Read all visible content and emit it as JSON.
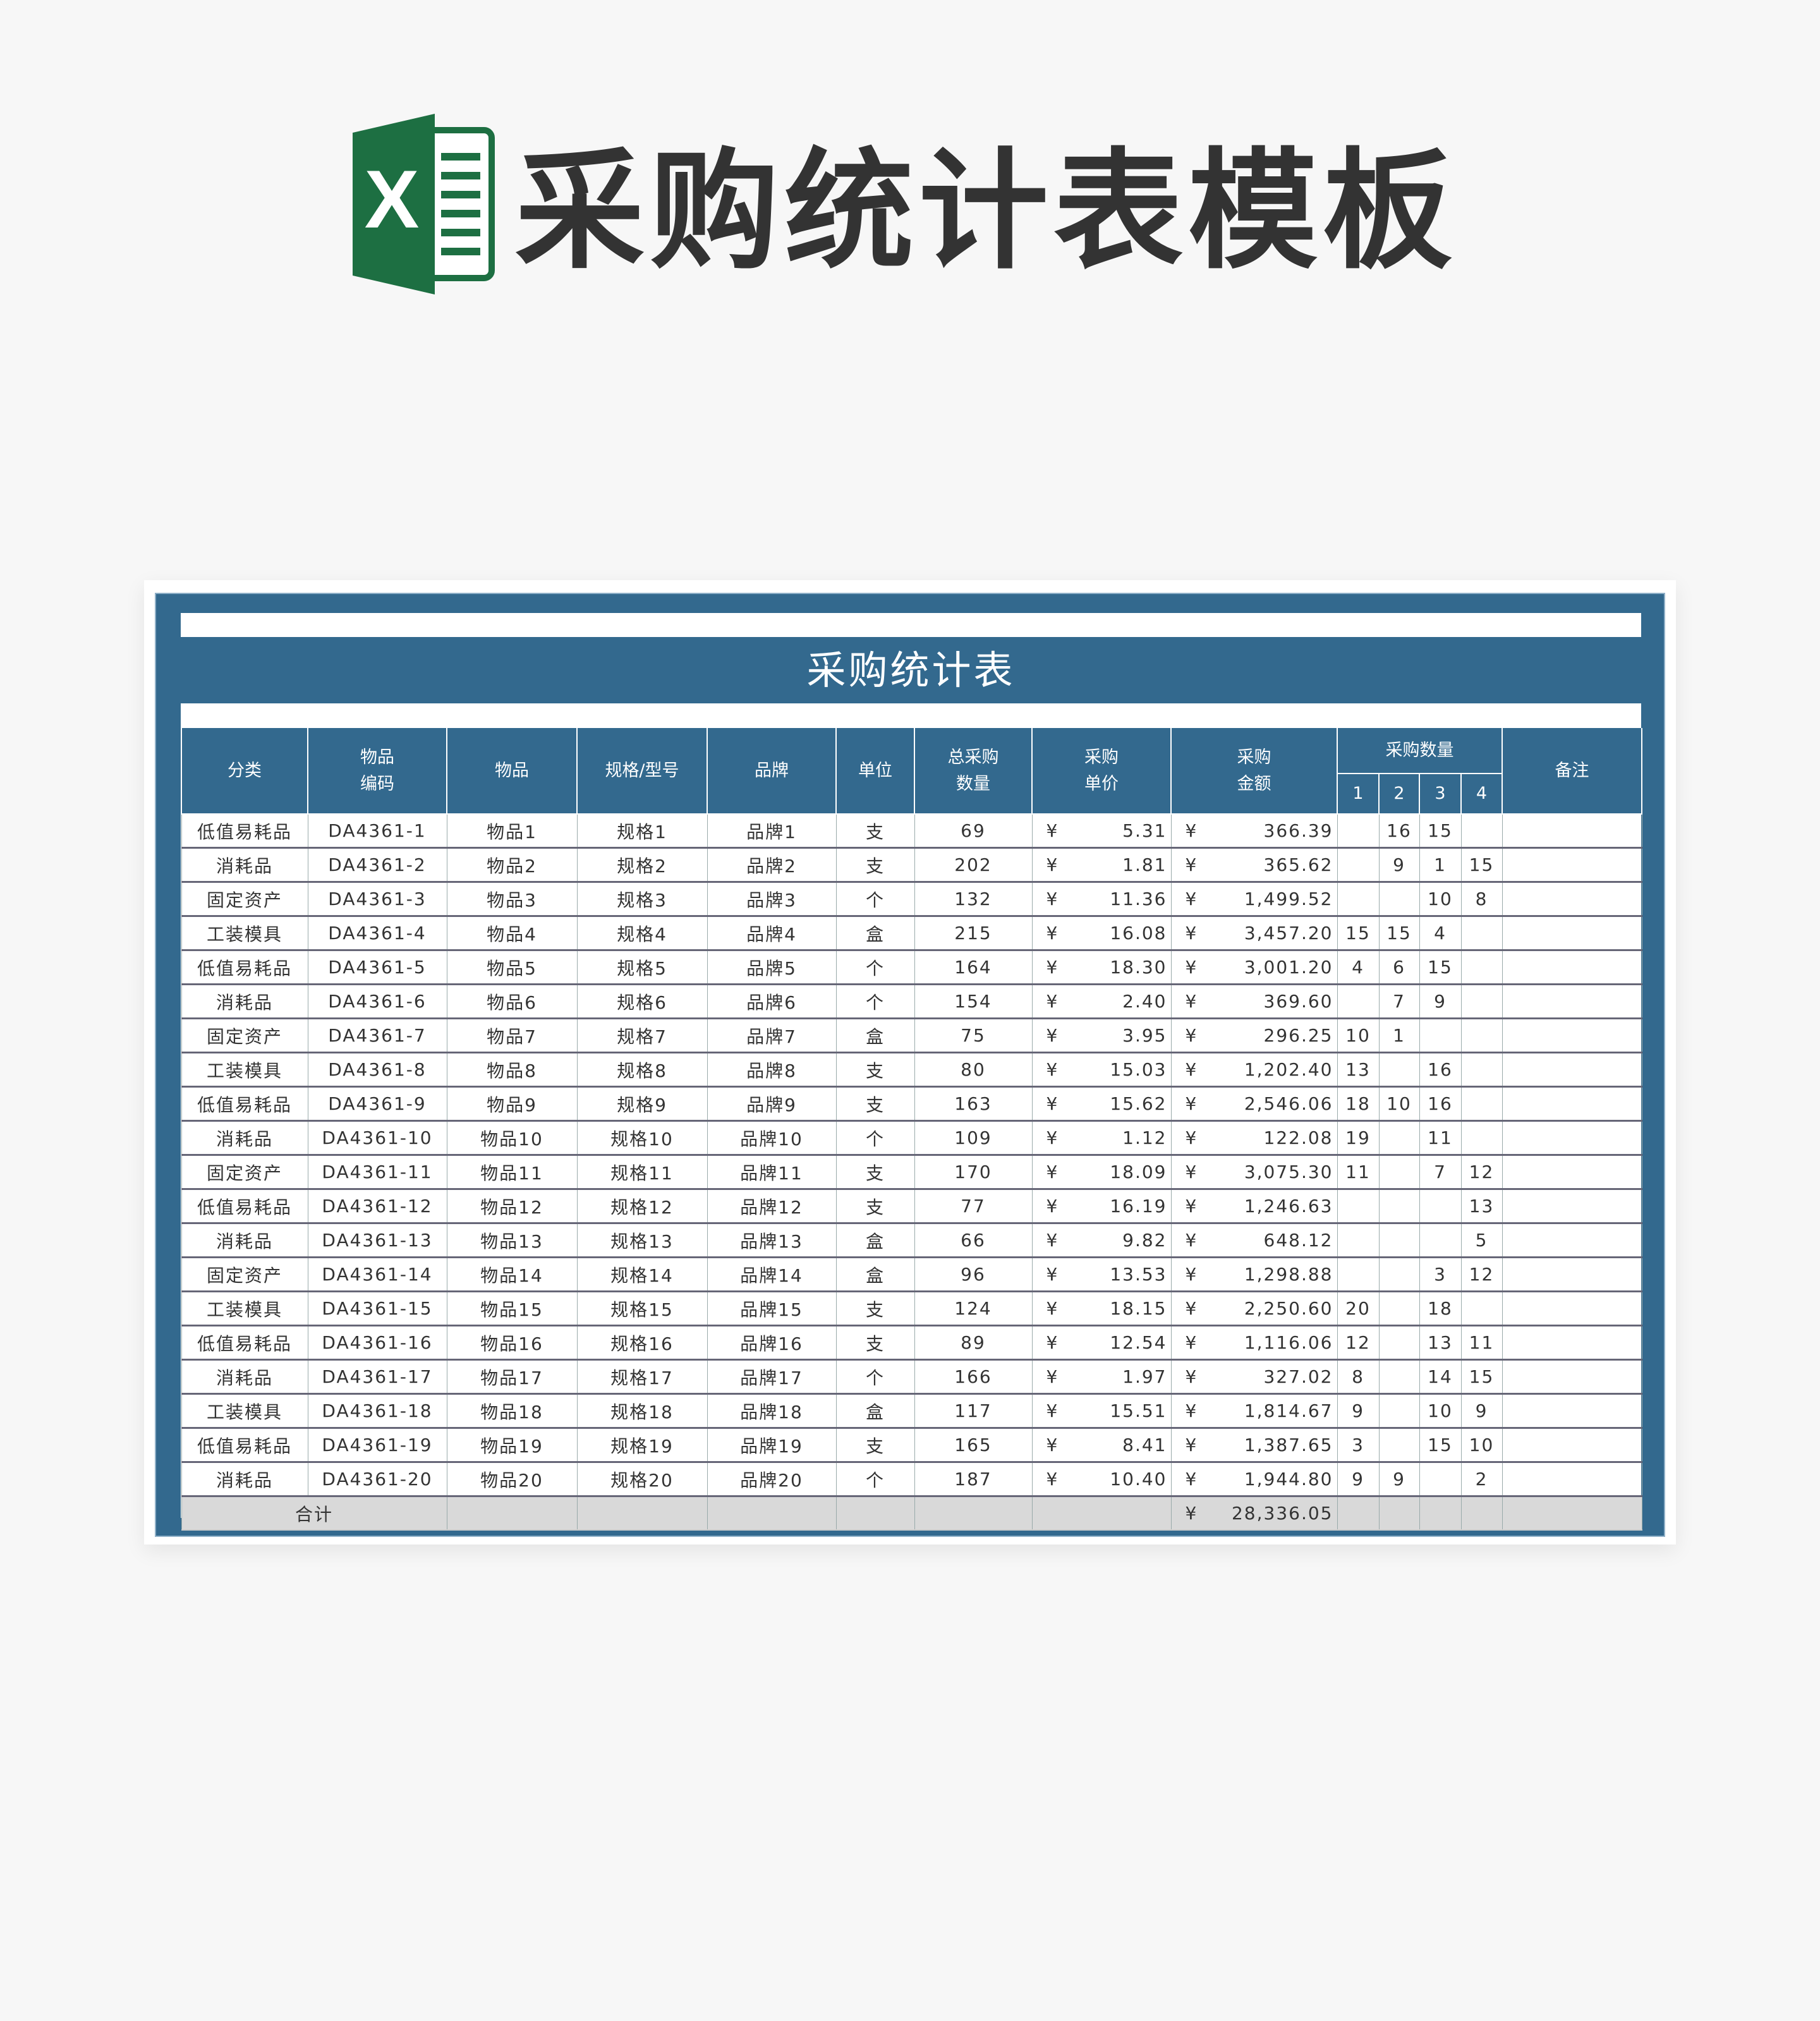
{
  "page": {
    "title": "采购统计表模板",
    "logo_letter": "X",
    "brand_color": "#1d6f42",
    "accent": "#33698e"
  },
  "sheet": {
    "title": "采购统计表",
    "headers": {
      "category": "分类",
      "code": "物品\n编码",
      "item": "物品",
      "spec": "规格/型号",
      "brand": "品牌",
      "unit": "单位",
      "total_qty": "总采购\n数量",
      "unit_price": "采购\n单价",
      "amount": "采购\n金额",
      "qty_group": "采购数量",
      "q": [
        "1",
        "2",
        "3",
        "4"
      ],
      "remark": "备注"
    },
    "currency": "¥",
    "rows": [
      [
        "低值易耗品",
        "DA4361-1",
        "物品1",
        "规格1",
        "品牌1",
        "支",
        "69",
        "5.31",
        "366.39",
        "",
        "16",
        "15",
        ""
      ],
      [
        "消耗品",
        "DA4361-2",
        "物品2",
        "规格2",
        "品牌2",
        "支",
        "202",
        "1.81",
        "365.62",
        "",
        "9",
        "1",
        "15"
      ],
      [
        "固定资产",
        "DA4361-3",
        "物品3",
        "规格3",
        "品牌3",
        "个",
        "132",
        "11.36",
        "1,499.52",
        "",
        "",
        "10",
        "8"
      ],
      [
        "工装模具",
        "DA4361-4",
        "物品4",
        "规格4",
        "品牌4",
        "盒",
        "215",
        "16.08",
        "3,457.20",
        "15",
        "15",
        "4",
        ""
      ],
      [
        "低值易耗品",
        "DA4361-5",
        "物品5",
        "规格5",
        "品牌5",
        "个",
        "164",
        "18.30",
        "3,001.20",
        "4",
        "6",
        "15",
        ""
      ],
      [
        "消耗品",
        "DA4361-6",
        "物品6",
        "规格6",
        "品牌6",
        "个",
        "154",
        "2.40",
        "369.60",
        "",
        "7",
        "9",
        ""
      ],
      [
        "固定资产",
        "DA4361-7",
        "物品7",
        "规格7",
        "品牌7",
        "盒",
        "75",
        "3.95",
        "296.25",
        "10",
        "1",
        "",
        ""
      ],
      [
        "工装模具",
        "DA4361-8",
        "物品8",
        "规格8",
        "品牌8",
        "支",
        "80",
        "15.03",
        "1,202.40",
        "13",
        "",
        "16",
        ""
      ],
      [
        "低值易耗品",
        "DA4361-9",
        "物品9",
        "规格9",
        "品牌9",
        "支",
        "163",
        "15.62",
        "2,546.06",
        "18",
        "10",
        "16",
        ""
      ],
      [
        "消耗品",
        "DA4361-10",
        "物品10",
        "规格10",
        "品牌10",
        "个",
        "109",
        "1.12",
        "122.08",
        "19",
        "",
        "11",
        ""
      ],
      [
        "固定资产",
        "DA4361-11",
        "物品11",
        "规格11",
        "品牌11",
        "支",
        "170",
        "18.09",
        "3,075.30",
        "11",
        "",
        "7",
        "12"
      ],
      [
        "低值易耗品",
        "DA4361-12",
        "物品12",
        "规格12",
        "品牌12",
        "支",
        "77",
        "16.19",
        "1,246.63",
        "",
        "",
        "",
        "13"
      ],
      [
        "消耗品",
        "DA4361-13",
        "物品13",
        "规格13",
        "品牌13",
        "盒",
        "66",
        "9.82",
        "648.12",
        "",
        "",
        "",
        "5"
      ],
      [
        "固定资产",
        "DA4361-14",
        "物品14",
        "规格14",
        "品牌14",
        "盒",
        "96",
        "13.53",
        "1,298.88",
        "",
        "",
        "3",
        "12"
      ],
      [
        "工装模具",
        "DA4361-15",
        "物品15",
        "规格15",
        "品牌15",
        "支",
        "124",
        "18.15",
        "2,250.60",
        "20",
        "",
        "18",
        ""
      ],
      [
        "低值易耗品",
        "DA4361-16",
        "物品16",
        "规格16",
        "品牌16",
        "支",
        "89",
        "12.54",
        "1,116.06",
        "12",
        "",
        "13",
        "11"
      ],
      [
        "消耗品",
        "DA4361-17",
        "物品17",
        "规格17",
        "品牌17",
        "个",
        "166",
        "1.97",
        "327.02",
        "8",
        "",
        "14",
        "15"
      ],
      [
        "工装模具",
        "DA4361-18",
        "物品18",
        "规格18",
        "品牌18",
        "盒",
        "117",
        "15.51",
        "1,814.67",
        "9",
        "",
        "10",
        "9"
      ],
      [
        "低值易耗品",
        "DA4361-19",
        "物品19",
        "规格19",
        "品牌19",
        "支",
        "165",
        "8.41",
        "1,387.65",
        "3",
        "",
        "15",
        "10"
      ],
      [
        "消耗品",
        "DA4361-20",
        "物品20",
        "规格20",
        "品牌20",
        "个",
        "187",
        "10.40",
        "1,944.80",
        "9",
        "9",
        "",
        "2"
      ]
    ],
    "total": {
      "label": "合计",
      "amount": "28,336.05"
    }
  }
}
